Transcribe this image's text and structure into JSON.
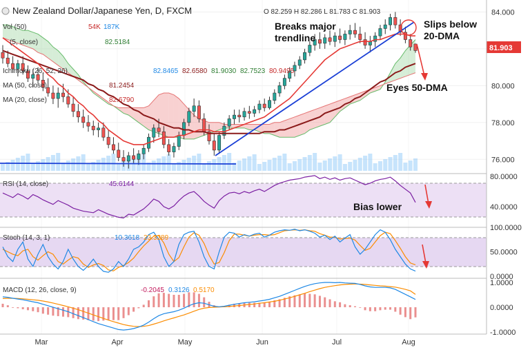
{
  "chart_data": {
    "type": "candlestick",
    "title": "New Zealand Dollar/Japanese Yen, D, FXCM",
    "ohlc": {
      "o": "82.259",
      "h": "82.286",
      "l": "81.783",
      "c": "81.903"
    },
    "last_price": "81.903",
    "x_ticks": [
      "Mar",
      "Apr",
      "May",
      "Jun",
      "Jul",
      "Aug"
    ],
    "price_axis": {
      "ticks": [
        "84.000",
        "82.000",
        "80.000",
        "78.000",
        "76.000"
      ],
      "ylim": [
        75.3,
        84.5
      ]
    },
    "price_series": [
      [
        81.8,
        82.2,
        81.2,
        81.5
      ],
      [
        81.5,
        81.9,
        81.0,
        81.2
      ],
      [
        81.2,
        81.6,
        80.7,
        80.9
      ],
      [
        80.9,
        81.4,
        80.5,
        81.2
      ],
      [
        81.2,
        81.6,
        80.6,
        80.8
      ],
      [
        80.8,
        81.1,
        80.2,
        80.4
      ],
      [
        80.4,
        80.9,
        79.9,
        80.6
      ],
      [
        80.6,
        81.0,
        80.1,
        80.3
      ],
      [
        80.3,
        80.7,
        79.7,
        79.9
      ],
      [
        79.9,
        80.4,
        79.4,
        79.6
      ],
      [
        79.6,
        80.0,
        79.0,
        79.3
      ],
      [
        79.3,
        79.9,
        78.8,
        79.6
      ],
      [
        79.6,
        80.1,
        79.1,
        79.4
      ],
      [
        79.4,
        79.8,
        78.8,
        79.0
      ],
      [
        79.0,
        79.4,
        78.3,
        78.6
      ],
      [
        78.6,
        79.0,
        78.0,
        78.3
      ],
      [
        78.3,
        78.7,
        77.7,
        78.0
      ],
      [
        78.0,
        78.4,
        77.5,
        77.8
      ],
      [
        77.8,
        78.1,
        77.3,
        77.6
      ],
      [
        77.6,
        78.0,
        77.2,
        77.7
      ],
      [
        77.7,
        78.0,
        77.0,
        77.2
      ],
      [
        77.2,
        77.6,
        76.6,
        76.8
      ],
      [
        76.8,
        77.2,
        76.3,
        76.5
      ],
      [
        76.5,
        76.9,
        75.9,
        76.1
      ],
      [
        76.1,
        76.5,
        75.6,
        75.9
      ],
      [
        75.9,
        76.4,
        75.5,
        76.2
      ],
      [
        76.2,
        76.6,
        75.8,
        76.0
      ],
      [
        76.0,
        76.5,
        75.7,
        76.3
      ],
      [
        76.3,
        76.8,
        76.0,
        76.6
      ],
      [
        76.6,
        77.4,
        76.4,
        77.2
      ],
      [
        77.2,
        77.9,
        76.9,
        77.7
      ],
      [
        77.7,
        78.2,
        77.2,
        77.5
      ],
      [
        77.5,
        77.8,
        76.6,
        76.8
      ],
      [
        76.8,
        77.1,
        76.2,
        76.4
      ],
      [
        76.4,
        76.9,
        76.1,
        76.7
      ],
      [
        76.7,
        77.5,
        76.5,
        77.3
      ],
      [
        77.3,
        78.2,
        77.1,
        78.0
      ],
      [
        78.0,
        78.8,
        77.8,
        78.6
      ],
      [
        78.6,
        79.3,
        78.3,
        78.9
      ],
      [
        78.9,
        79.2,
        78.0,
        78.2
      ],
      [
        78.2,
        78.5,
        77.3,
        77.5
      ],
      [
        77.5,
        77.9,
        76.8,
        77.0
      ],
      [
        77.0,
        77.4,
        76.2,
        76.5
      ],
      [
        76.5,
        77.5,
        76.3,
        77.3
      ],
      [
        77.3,
        78.0,
        77.1,
        77.8
      ],
      [
        77.8,
        78.4,
        77.6,
        78.2
      ],
      [
        78.2,
        78.7,
        77.9,
        78.4
      ],
      [
        78.4,
        78.7,
        78.0,
        78.3
      ],
      [
        78.3,
        78.8,
        78.1,
        78.6
      ],
      [
        78.6,
        78.9,
        78.2,
        78.5
      ],
      [
        78.5,
        78.9,
        78.3,
        78.7
      ],
      [
        78.7,
        79.2,
        78.5,
        79.0
      ],
      [
        79.0,
        79.3,
        78.6,
        78.8
      ],
      [
        78.8,
        79.4,
        78.7,
        79.2
      ],
      [
        79.2,
        79.8,
        79.0,
        79.6
      ],
      [
        79.6,
        80.2,
        79.4,
        80.0
      ],
      [
        80.0,
        80.6,
        79.8,
        80.4
      ],
      [
        80.4,
        81.0,
        80.2,
        80.8
      ],
      [
        80.8,
        81.3,
        80.5,
        81.1
      ],
      [
        81.1,
        81.6,
        80.9,
        81.4
      ],
      [
        81.4,
        82.0,
        81.2,
        81.8
      ],
      [
        81.8,
        82.4,
        81.6,
        82.2
      ],
      [
        82.2,
        82.8,
        81.9,
        82.5
      ],
      [
        82.5,
        82.9,
        82.0,
        82.3
      ],
      [
        82.3,
        82.8,
        82.0,
        82.6
      ],
      [
        82.6,
        83.0,
        82.2,
        82.4
      ],
      [
        82.4,
        82.9,
        82.1,
        82.7
      ],
      [
        82.7,
        83.1,
        82.3,
        82.5
      ],
      [
        82.5,
        83.0,
        82.2,
        82.8
      ],
      [
        82.8,
        83.3,
        82.5,
        83.0
      ],
      [
        83.0,
        83.4,
        82.6,
        82.8
      ],
      [
        82.8,
        83.2,
        82.3,
        82.5
      ],
      [
        82.5,
        82.9,
        82.0,
        82.2
      ],
      [
        82.2,
        82.7,
        81.8,
        82.4
      ],
      [
        82.4,
        82.9,
        82.1,
        82.7
      ],
      [
        82.7,
        83.3,
        82.5,
        83.1
      ],
      [
        83.1,
        83.6,
        82.8,
        83.3
      ],
      [
        83.3,
        83.9,
        83.0,
        83.7
      ],
      [
        83.7,
        84.0,
        83.1,
        83.3
      ],
      [
        83.3,
        83.6,
        82.7,
        82.9
      ],
      [
        82.9,
        83.2,
        82.3,
        82.5
      ],
      [
        82.5,
        82.8,
        81.9,
        82.1
      ],
      [
        82.259,
        82.286,
        81.783,
        81.903
      ]
    ],
    "ma20": [
      82.6,
      82.4,
      82.2,
      82.0,
      81.8,
      81.6,
      81.4,
      81.2,
      80.9,
      80.6,
      80.4,
      80.1,
      79.9,
      79.6,
      79.4,
      79.1,
      78.9,
      78.6,
      78.4,
      78.1,
      77.9,
      77.6,
      77.4,
      77.2,
      77.0,
      76.9,
      76.8,
      76.8,
      76.8,
      76.9,
      77.0,
      77.1,
      77.2,
      77.2,
      77.2,
      77.3,
      77.3,
      77.4,
      77.5,
      77.6,
      77.6,
      77.6,
      77.5,
      77.5,
      77.5,
      77.6,
      77.7,
      77.8,
      77.9,
      78.0,
      78.1,
      78.2,
      78.3,
      78.5,
      78.7,
      78.9,
      79.1,
      79.3,
      79.6,
      79.9,
      80.2,
      80.5,
      80.8,
      81.1,
      81.4,
      81.6,
      81.8,
      82.0,
      82.1,
      82.2,
      82.3,
      82.4,
      82.4,
      82.4,
      82.5,
      82.5,
      82.6,
      82.7,
      82.8,
      82.8,
      82.8,
      82.7,
      82.7
    ],
    "ma50": [
      81.9,
      81.8,
      81.7,
      81.6,
      81.5,
      81.4,
      81.3,
      81.2,
      81.1,
      81.0,
      80.9,
      80.8,
      80.7,
      80.6,
      80.5,
      80.4,
      80.3,
      80.1,
      80.0,
      79.8,
      79.7,
      79.5,
      79.4,
      79.2,
      79.0,
      78.9,
      78.7,
      78.6,
      78.4,
      78.3,
      78.2,
      78.0,
      77.9,
      77.8,
      77.7,
      77.7,
      77.6,
      77.6,
      77.5,
      77.5,
      77.5,
      77.4,
      77.4,
      77.4,
      77.4,
      77.4,
      77.4,
      77.4,
      77.4,
      77.4,
      77.4,
      77.4,
      77.5,
      77.5,
      77.5,
      77.6,
      77.6,
      77.7,
      77.8,
      77.9,
      78.0,
      78.1,
      78.2,
      78.3,
      78.5,
      78.6,
      78.7,
      78.8,
      79.0,
      79.1,
      79.3,
      79.4,
      79.6,
      79.8,
      80.0,
      80.2,
      80.3,
      80.5,
      80.7,
      80.8,
      81.0,
      81.1,
      81.2
    ],
    "cloud_a": [
      83.3,
      83.3,
      83.2,
      83.1,
      83.0,
      83.0,
      82.9,
      82.8,
      82.6,
      82.4,
      82.1,
      81.9,
      81.6,
      81.2,
      80.9,
      80.6,
      80.2,
      79.9,
      79.6,
      79.4,
      79.2,
      79.0,
      78.9,
      78.7,
      78.5,
      78.4,
      78.2,
      78.0,
      77.8,
      77.6,
      77.5,
      77.4,
      77.3,
      77.2,
      77.2,
      77.2,
      77.1,
      77.1,
      77.1,
      77.2,
      77.3,
      77.4,
      77.5,
      77.6,
      77.7,
      77.7,
      77.7,
      77.7,
      77.7,
      77.6,
      77.6,
      77.5,
      77.4,
      77.4,
      77.3,
      77.2,
      77.2,
      77.2,
      77.2,
      77.3,
      77.4,
      77.6,
      77.7,
      77.8,
      77.9,
      78.0,
      78.3,
      78.6,
      78.8,
      79.0,
      79.1,
      79.2,
      79.4,
      79.6,
      79.7,
      79.8,
      80.2,
      80.7,
      81.2,
      81.5,
      81.9,
      82.2,
      82.5
    ],
    "cloud_b": [
      82.6,
      82.5,
      82.4,
      82.3,
      82.2,
      82.1,
      82.0,
      81.8,
      81.7,
      81.5,
      81.3,
      81.1,
      80.9,
      80.7,
      80.5,
      80.3,
      80.1,
      79.9,
      79.7,
      79.5,
      79.3,
      79.1,
      78.9,
      78.8,
      78.8,
      78.8,
      78.8,
      78.8,
      78.8,
      78.9,
      79.2,
      79.5,
      79.6,
      79.6,
      79.5,
      79.3,
      79.0,
      78.7,
      78.4,
      78.2,
      78.1,
      78.0,
      78.0,
      78.0,
      77.9,
      77.9,
      77.9,
      77.9,
      77.9,
      77.9,
      77.9,
      77.9,
      77.9,
      77.9,
      78.0,
      78.0,
      78.1,
      78.2,
      78.3,
      78.4,
      78.5,
      78.6,
      78.7,
      78.8,
      78.9,
      79.0,
      79.1,
      79.2,
      79.3,
      79.4,
      79.5,
      79.6,
      79.7,
      79.8,
      79.9,
      80.0,
      80.1,
      80.2,
      80.3,
      80.4,
      80.5,
      80.6,
      80.7
    ],
    "rsi": [
      58,
      55,
      52,
      57,
      54,
      50,
      56,
      53,
      49,
      46,
      43,
      48,
      45,
      42,
      38,
      36,
      34,
      33,
      32,
      36,
      33,
      30,
      28,
      26,
      25,
      30,
      29,
      33,
      37,
      43,
      50,
      47,
      40,
      37,
      41,
      48,
      54,
      58,
      60,
      54,
      47,
      42,
      38,
      48,
      54,
      58,
      59,
      57,
      60,
      58,
      61,
      63,
      60,
      64,
      68,
      71,
      73,
      75,
      76,
      77,
      79,
      80,
      81,
      77,
      79,
      76,
      78,
      75,
      77,
      78,
      75,
      72,
      69,
      71,
      74,
      76,
      77,
      79,
      74,
      68,
      63,
      58,
      45.6144
    ],
    "stoch_k": [
      60,
      40,
      30,
      55,
      70,
      35,
      20,
      45,
      65,
      40,
      25,
      15,
      30,
      55,
      35,
      20,
      12,
      22,
      35,
      20,
      10,
      8,
      15,
      30,
      20,
      35,
      55,
      60,
      70,
      85,
      90,
      75,
      40,
      20,
      30,
      65,
      85,
      90,
      92,
      70,
      40,
      20,
      15,
      50,
      80,
      90,
      88,
      80,
      85,
      82,
      86,
      88,
      80,
      84,
      90,
      93,
      95,
      94,
      96,
      93,
      95,
      92,
      88,
      80,
      84,
      75,
      82,
      70,
      78,
      85,
      60,
      45,
      55,
      70,
      85,
      95,
      90,
      75,
      55,
      40,
      25,
      15,
      10.3618
    ],
    "stoch_d": [
      55,
      50,
      45,
      42,
      52,
      55,
      40,
      33,
      42,
      50,
      45,
      30,
      25,
      33,
      40,
      37,
      25,
      18,
      23,
      26,
      22,
      13,
      11,
      18,
      22,
      28,
      37,
      50,
      62,
      72,
      82,
      83,
      68,
      45,
      30,
      38,
      60,
      80,
      89,
      84,
      67,
      43,
      25,
      28,
      48,
      73,
      86,
      86,
      84,
      82,
      84,
      85,
      85,
      84,
      85,
      89,
      93,
      94,
      95,
      94,
      95,
      93,
      92,
      87,
      84,
      80,
      80,
      76,
      77,
      78,
      74,
      63,
      53,
      57,
      70,
      83,
      90,
      87,
      73,
      57,
      40,
      27,
      23.3289
    ],
    "macd": [
      0.42,
      0.4,
      0.36,
      0.33,
      0.3,
      0.26,
      0.22,
      0.18,
      0.12,
      0.06,
      0.0,
      -0.06,
      -0.12,
      -0.18,
      -0.26,
      -0.34,
      -0.42,
      -0.5,
      -0.58,
      -0.66,
      -0.72,
      -0.78,
      -0.84,
      -0.9,
      -0.92,
      -0.9,
      -0.86,
      -0.8,
      -0.72,
      -0.6,
      -0.46,
      -0.34,
      -0.26,
      -0.22,
      -0.18,
      -0.12,
      -0.04,
      0.06,
      0.14,
      0.18,
      0.16,
      0.1,
      0.04,
      0.02,
      0.04,
      0.08,
      0.12,
      0.15,
      0.18,
      0.2,
      0.22,
      0.25,
      0.28,
      0.32,
      0.38,
      0.44,
      0.52,
      0.6,
      0.68,
      0.76,
      0.84,
      0.9,
      0.95,
      0.98,
      1.0,
      1.0,
      0.99,
      1.0,
      0.98,
      0.97,
      0.96,
      0.92,
      0.86,
      0.82,
      0.8,
      0.8,
      0.8,
      0.78,
      0.72,
      0.62,
      0.52,
      0.42,
      0.3126
    ],
    "macd_signal": [
      0.35,
      0.36,
      0.36,
      0.35,
      0.34,
      0.32,
      0.3,
      0.28,
      0.25,
      0.21,
      0.17,
      0.12,
      0.07,
      0.02,
      -0.04,
      -0.1,
      -0.17,
      -0.24,
      -0.31,
      -0.38,
      -0.45,
      -0.52,
      -0.58,
      -0.64,
      -0.7,
      -0.74,
      -0.77,
      -0.78,
      -0.77,
      -0.74,
      -0.68,
      -0.62,
      -0.55,
      -0.49,
      -0.43,
      -0.37,
      -0.31,
      -0.24,
      -0.16,
      -0.09,
      -0.04,
      -0.01,
      0.0,
      0.01,
      0.02,
      0.03,
      0.05,
      0.07,
      0.09,
      0.11,
      0.13,
      0.16,
      0.18,
      0.21,
      0.24,
      0.28,
      0.33,
      0.38,
      0.44,
      0.5,
      0.56,
      0.63,
      0.69,
      0.75,
      0.8,
      0.84,
      0.87,
      0.9,
      0.92,
      0.93,
      0.94,
      0.93,
      0.92,
      0.9,
      0.88,
      0.86,
      0.85,
      0.83,
      0.81,
      0.77,
      0.72,
      0.66,
      0.517
    ]
  },
  "header": {
    "title": "New Zealand Dollar/Japanese Yen, D, FXCM",
    "ohlc_text": "O 82.259  H 82.286  L 81.783  C 81.903"
  },
  "legends": {
    "vol": {
      "label": "Vol (50)",
      "v1": "54K",
      "v2": "187K"
    },
    "sma5": {
      "label": "(5, close)",
      "v1": "82.5184"
    },
    "ichimoku": {
      "label": "Ichimoku (26, 52, 26)",
      "values": [
        "82.8465",
        "82.6580",
        "81.9030",
        "82.7523",
        "80.9495"
      ]
    },
    "ma50": {
      "label": "MA (50, close)",
      "v1": "81.2454"
    },
    "ma20": {
      "label": "MA (20, close)",
      "v1": "82.6790"
    },
    "rsi": {
      "label": "RSI (14, close)",
      "v1": "45.6144"
    },
    "stoch": {
      "label": "Stoch (14, 3, 1)",
      "v1": "10.3618",
      "v2": "23.3289"
    },
    "macd": {
      "label": "MACD (12, 26, close, 9)",
      "v1": "-0.2045",
      "v2": "0.3126",
      "v3": "0.5170"
    }
  },
  "annotations": {
    "trendline": "Breaks major\ntrendline",
    "slips": "Slips below\n20-DMA",
    "eyes": "Eyes 50-DMA",
    "bias": "Bias lower"
  },
  "axes": {
    "rsi_ticks": [
      "80.0000",
      "40.0000"
    ],
    "stoch_ticks": [
      "100.0000",
      "50.0000",
      "0.0000"
    ],
    "macd_ticks": [
      "1.0000",
      "0.0000",
      "-1.0000"
    ]
  },
  "colors": {
    "up": "#26a69a",
    "down": "#ef5350",
    "ma20": "#e53935",
    "ma50": "#8b1a1a",
    "cloud_green": "#a5d6a7",
    "cloud_red": "#ef9a9a",
    "rsi": "#7b1fa2",
    "stoch_k": "#1e88e5",
    "stoch_d": "#fb8c00",
    "macd": "#1e88e5",
    "signal": "#fb8c00",
    "annot_arrow": "#e53935",
    "trendline": "#1a3fd6"
  }
}
